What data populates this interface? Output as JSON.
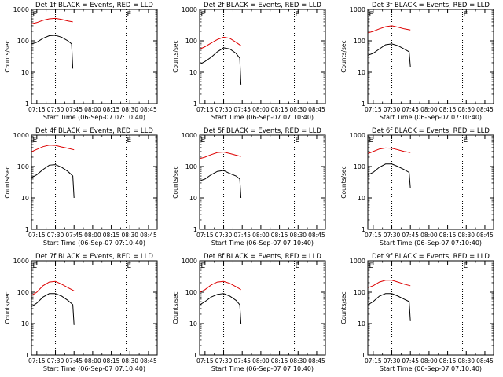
{
  "colors": {
    "events": "#000000",
    "lld": "#dd0000",
    "axis": "#000000"
  },
  "x_tick_labels": [
    "07:15",
    "07:30",
    "07:45",
    "08:00",
    "08:15",
    "08:30",
    "08:45"
  ],
  "y_tick_labels": [
    "1",
    "10",
    "100",
    "1000"
  ],
  "chart_data": [
    {
      "type": "line",
      "title": "Det 1f BLACK = Events, RED = LLD",
      "xlabel": "Start Time (06-Sep-07 07:10:40)",
      "ylabel": "Counts/sec",
      "xlim": [
        "07:10:40",
        "08:52"
      ],
      "ylim": [
        1,
        1000
      ],
      "yscale": "log",
      "vlines": [
        "07:30",
        "08:27"
      ],
      "markers": [
        {
          "text": "E",
          "x": "07:11"
        },
        {
          "text": "E",
          "x": "08:27"
        }
      ],
      "series": [
        {
          "name": "BLACK",
          "color": "#000000",
          "x": [
            "07:11",
            "07:15",
            "07:20",
            "07:25",
            "07:30",
            "07:35",
            "07:40",
            "07:43",
            "07:44"
          ],
          "y": [
            80,
            90,
            120,
            145,
            150,
            130,
            100,
            80,
            13
          ]
        },
        {
          "name": "RED",
          "color": "#dd0000",
          "x": [
            "07:11",
            "07:15",
            "07:20",
            "07:25",
            "07:30",
            "07:35",
            "07:40",
            "07:44"
          ],
          "y": [
            350,
            380,
            450,
            500,
            520,
            480,
            430,
            400
          ]
        }
      ]
    },
    {
      "type": "line",
      "title": "Det 2f BLACK = Events, RED = LLD",
      "xlabel": "Start Time (06-Sep-07 07:10:40)",
      "ylabel": "Counts/sec",
      "xlim": [
        "07:10:40",
        "08:52"
      ],
      "ylim": [
        1,
        1000
      ],
      "yscale": "log",
      "vlines": [
        "07:30",
        "08:27"
      ],
      "markers": [
        {
          "text": "E",
          "x": "07:11"
        },
        {
          "text": "E",
          "x": "08:27"
        }
      ],
      "series": [
        {
          "name": "BLACK",
          "color": "#000000",
          "x": [
            "07:11",
            "07:15",
            "07:20",
            "07:25",
            "07:30",
            "07:35",
            "07:40",
            "07:43",
            "07:44"
          ],
          "y": [
            18,
            22,
            30,
            45,
            60,
            55,
            40,
            28,
            4
          ]
        },
        {
          "name": "RED",
          "color": "#dd0000",
          "x": [
            "07:11",
            "07:15",
            "07:20",
            "07:25",
            "07:30",
            "07:35",
            "07:40",
            "07:44"
          ],
          "y": [
            55,
            65,
            85,
            110,
            130,
            120,
            90,
            70
          ]
        }
      ]
    },
    {
      "type": "line",
      "title": "Det 3f BLACK = Events, RED = LLD",
      "xlabel": "Start Time (06-Sep-07 07:10:40)",
      "ylabel": "Counts/sec",
      "xlim": [
        "07:10:40",
        "08:52"
      ],
      "ylim": [
        1,
        1000
      ],
      "yscale": "log",
      "vlines": [
        "07:30",
        "08:27"
      ],
      "markers": [
        {
          "text": "E",
          "x": "07:11"
        },
        {
          "text": "E",
          "x": "08:27"
        }
      ],
      "series": [
        {
          "name": "BLACK",
          "color": "#000000",
          "x": [
            "07:11",
            "07:15",
            "07:20",
            "07:25",
            "07:30",
            "07:35",
            "07:40",
            "07:44",
            "07:45"
          ],
          "y": [
            35,
            40,
            55,
            75,
            80,
            70,
            55,
            45,
            15
          ]
        },
        {
          "name": "RED",
          "color": "#dd0000",
          "x": [
            "07:11",
            "07:15",
            "07:20",
            "07:25",
            "07:30",
            "07:35",
            "07:40",
            "07:45"
          ],
          "y": [
            180,
            200,
            240,
            280,
            300,
            270,
            240,
            220
          ]
        }
      ]
    },
    {
      "type": "line",
      "title": "Det 4f BLACK = Events, RED = LLD",
      "xlabel": "Start Time (06-Sep-07 07:10:40)",
      "ylabel": "Counts/sec",
      "xlim": [
        "07:10:40",
        "08:52"
      ],
      "ylim": [
        1,
        1000
      ],
      "yscale": "log",
      "vlines": [
        "07:30",
        "08:27"
      ],
      "markers": [
        {
          "text": "E",
          "x": "07:11"
        },
        {
          "text": "E",
          "x": "08:27"
        }
      ],
      "series": [
        {
          "name": "BLACK",
          "color": "#000000",
          "x": [
            "07:11",
            "07:15",
            "07:20",
            "07:25",
            "07:30",
            "07:35",
            "07:40",
            "07:44",
            "07:45"
          ],
          "y": [
            45,
            55,
            80,
            110,
            115,
            95,
            70,
            50,
            10
          ]
        },
        {
          "name": "RED",
          "color": "#dd0000",
          "x": [
            "07:11",
            "07:15",
            "07:20",
            "07:25",
            "07:30",
            "07:35",
            "07:40",
            "07:45"
          ],
          "y": [
            300,
            350,
            430,
            480,
            470,
            420,
            380,
            340
          ]
        }
      ]
    },
    {
      "type": "line",
      "title": "Det 5f BLACK = Events, RED = LLD",
      "xlabel": "Start Time (06-Sep-07 07:10:40)",
      "ylabel": "Counts/sec",
      "xlim": [
        "07:10:40",
        "08:52"
      ],
      "ylim": [
        1,
        1000
      ],
      "yscale": "log",
      "vlines": [
        "07:30",
        "08:27"
      ],
      "markers": [
        {
          "text": "E",
          "x": "07:11"
        },
        {
          "text": "E",
          "x": "08:27"
        }
      ],
      "series": [
        {
          "name": "BLACK",
          "color": "#000000",
          "x": [
            "07:11",
            "07:15",
            "07:20",
            "07:25",
            "07:30",
            "07:35",
            "07:40",
            "07:43",
            "07:44"
          ],
          "y": [
            35,
            40,
            55,
            70,
            75,
            60,
            50,
            40,
            10
          ]
        },
        {
          "name": "RED",
          "color": "#dd0000",
          "x": [
            "07:11",
            "07:15",
            "07:20",
            "07:25",
            "07:30",
            "07:35",
            "07:40",
            "07:44"
          ],
          "y": [
            180,
            200,
            240,
            280,
            290,
            260,
            230,
            210
          ]
        }
      ]
    },
    {
      "type": "line",
      "title": "Det 6f BLACK = Events, RED = LLD",
      "xlabel": "Start Time (06-Sep-07 07:10:40)",
      "ylabel": "Counts/sec",
      "xlim": [
        "07:10:40",
        "08:52"
      ],
      "ylim": [
        1,
        1000
      ],
      "yscale": "log",
      "vlines": [
        "07:30",
        "08:27"
      ],
      "markers": [
        {
          "text": "E",
          "x": "07:11"
        },
        {
          "text": "E",
          "x": "08:27"
        }
      ],
      "series": [
        {
          "name": "BLACK",
          "color": "#000000",
          "x": [
            "07:11",
            "07:15",
            "07:20",
            "07:25",
            "07:30",
            "07:35",
            "07:40",
            "07:44",
            "07:45"
          ],
          "y": [
            55,
            65,
            95,
            120,
            120,
            100,
            80,
            65,
            20
          ]
        },
        {
          "name": "RED",
          "color": "#dd0000",
          "x": [
            "07:11",
            "07:15",
            "07:20",
            "07:25",
            "07:30",
            "07:35",
            "07:40",
            "07:45"
          ],
          "y": [
            260,
            300,
            360,
            390,
            380,
            340,
            300,
            280
          ]
        }
      ]
    },
    {
      "type": "line",
      "title": "Det 7f BLACK = Events, RED = LLD",
      "xlabel": "Start Time (06-Sep-07 07:10:40)",
      "ylabel": "Counts/sec",
      "xlim": [
        "07:10:40",
        "08:52"
      ],
      "ylim": [
        1,
        1000
      ],
      "yscale": "log",
      "vlines": [
        "07:30",
        "08:27"
      ],
      "markers": [
        {
          "text": "E",
          "x": "07:11"
        },
        {
          "text": "E",
          "x": "08:27"
        }
      ],
      "series": [
        {
          "name": "BLACK",
          "color": "#000000",
          "x": [
            "07:11",
            "07:15",
            "07:20",
            "07:25",
            "07:30",
            "07:35",
            "07:40",
            "07:44",
            "07:45"
          ],
          "y": [
            35,
            45,
            70,
            90,
            90,
            75,
            55,
            40,
            9
          ]
        },
        {
          "name": "RED",
          "color": "#dd0000",
          "x": [
            "07:11",
            "07:15",
            "07:20",
            "07:25",
            "07:30",
            "07:35",
            "07:40",
            "07:45"
          ],
          "y": [
            80,
            100,
            160,
            210,
            220,
            180,
            140,
            110
          ]
        }
      ]
    },
    {
      "type": "line",
      "title": "Det 8f BLACK = Events, RED = LLD",
      "xlabel": "Start Time (06-Sep-07 07:10:40)",
      "ylabel": "Counts/sec",
      "xlim": [
        "07:10:40",
        "08:52"
      ],
      "ylim": [
        1,
        1000
      ],
      "yscale": "log",
      "vlines": [
        "07:30",
        "08:27"
      ],
      "markers": [
        {
          "text": "E",
          "x": "07:11"
        },
        {
          "text": "E",
          "x": "08:27"
        }
      ],
      "series": [
        {
          "name": "BLACK",
          "color": "#000000",
          "x": [
            "07:11",
            "07:15",
            "07:20",
            "07:25",
            "07:30",
            "07:35",
            "07:40",
            "07:43",
            "07:44"
          ],
          "y": [
            40,
            50,
            70,
            85,
            90,
            75,
            55,
            40,
            10
          ]
        },
        {
          "name": "RED",
          "color": "#dd0000",
          "x": [
            "07:11",
            "07:15",
            "07:20",
            "07:25",
            "07:30",
            "07:35",
            "07:40",
            "07:44"
          ],
          "y": [
            100,
            120,
            170,
            210,
            220,
            190,
            150,
            120
          ]
        }
      ]
    },
    {
      "type": "line",
      "title": "Det 9f BLACK = Events, RED = LLD",
      "xlabel": "Start Time (06-Sep-07 07:10:40)",
      "ylabel": "Counts/sec",
      "xlim": [
        "07:10:40",
        "08:52"
      ],
      "ylim": [
        1,
        1000
      ],
      "yscale": "log",
      "vlines": [
        "07:30",
        "08:27"
      ],
      "markers": [
        {
          "text": "E",
          "x": "07:11"
        },
        {
          "text": "E",
          "x": "08:27"
        }
      ],
      "series": [
        {
          "name": "BLACK",
          "color": "#000000",
          "x": [
            "07:11",
            "07:15",
            "07:20",
            "07:25",
            "07:30",
            "07:35",
            "07:40",
            "07:44",
            "07:45"
          ],
          "y": [
            40,
            50,
            75,
            90,
            90,
            75,
            60,
            50,
            12
          ]
        },
        {
          "name": "RED",
          "color": "#dd0000",
          "x": [
            "07:11",
            "07:15",
            "07:20",
            "07:25",
            "07:30",
            "07:35",
            "07:40",
            "07:45"
          ],
          "y": [
            140,
            160,
            210,
            240,
            240,
            210,
            180,
            160
          ]
        }
      ]
    }
  ]
}
